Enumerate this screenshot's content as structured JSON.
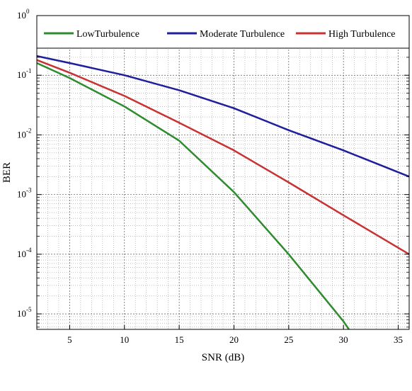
{
  "chart_data": {
    "type": "line",
    "xlabel": "SNR (dB)",
    "ylabel": "BER",
    "xlim": [
      2,
      36
    ],
    "ylim": [
      5.5e-06,
      1
    ],
    "y_scale": "log",
    "x_ticks": [
      5,
      10,
      15,
      20,
      25,
      30,
      35
    ],
    "y_ticks": [
      {
        "value": 1,
        "base": "10",
        "exp": "0"
      },
      {
        "value": 0.1,
        "base": "10",
        "exp": "-1"
      },
      {
        "value": 0.01,
        "base": "10",
        "exp": "-2"
      },
      {
        "value": 0.001,
        "base": "10",
        "exp": "-3"
      },
      {
        "value": 0.0001,
        "base": "10",
        "exp": "-4"
      },
      {
        "value": 1e-05,
        "base": "10",
        "exp": "-5"
      }
    ],
    "grid": true,
    "legend_position": "top",
    "series": [
      {
        "name": "LowTurbulence",
        "color": "#2e8b2e",
        "x": [
          2,
          5,
          10,
          15,
          20,
          25,
          30,
          30.5
        ],
        "y": [
          0.16,
          0.09,
          0.03,
          0.008,
          0.0011,
          0.0001,
          7.5e-06,
          5.5e-06
        ]
      },
      {
        "name": "Moderate Turbulence",
        "color": "#1f1f9e",
        "x": [
          2,
          5,
          10,
          15,
          20,
          25,
          30,
          36
        ],
        "y": [
          0.21,
          0.16,
          0.1,
          0.056,
          0.028,
          0.012,
          0.0055,
          0.002
        ]
      },
      {
        "name": "High Turbulence",
        "color": "#c83232",
        "x": [
          2,
          5,
          10,
          15,
          20,
          25,
          30,
          36
        ],
        "y": [
          0.18,
          0.11,
          0.045,
          0.016,
          0.0055,
          0.0016,
          0.00045,
          0.0001
        ]
      }
    ]
  }
}
